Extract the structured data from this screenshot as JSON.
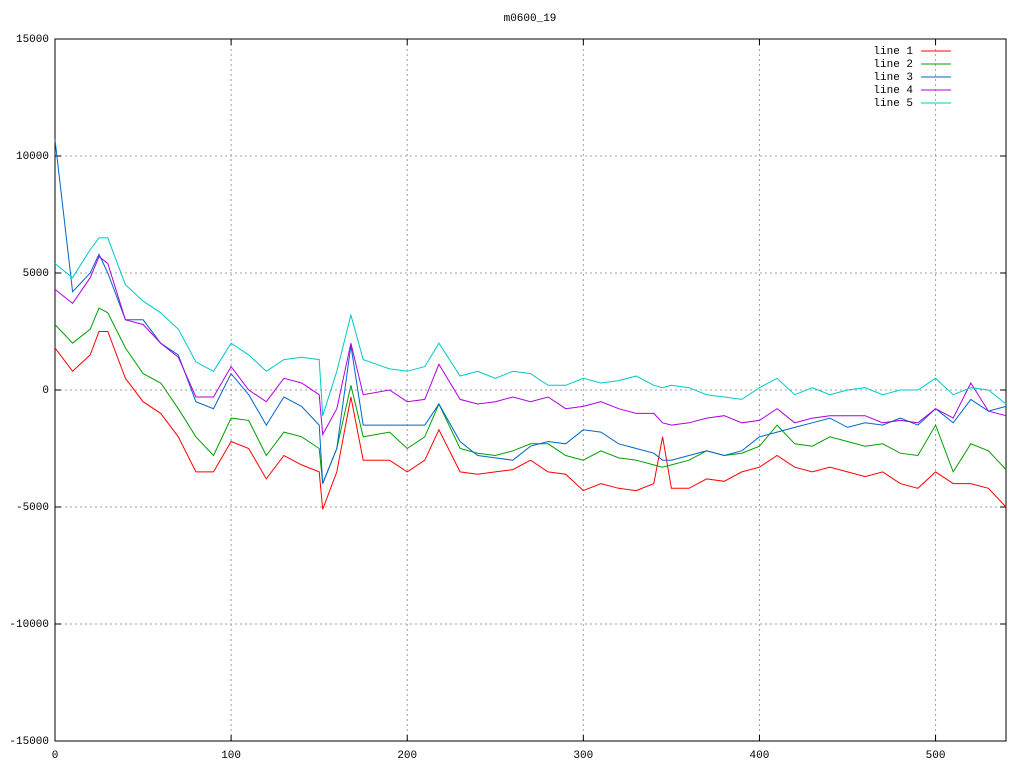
{
  "chart_data": {
    "type": "line",
    "title": "m0600_19",
    "x": [
      0,
      10,
      20,
      25,
      30,
      40,
      50,
      60,
      70,
      80,
      90,
      100,
      110,
      120,
      130,
      140,
      150,
      152,
      160,
      168,
      175,
      190,
      200,
      210,
      218,
      230,
      240,
      250,
      260,
      270,
      280,
      290,
      300,
      310,
      320,
      330,
      340,
      345,
      350,
      360,
      370,
      380,
      390,
      400,
      410,
      420,
      430,
      440,
      450,
      460,
      470,
      480,
      490,
      500,
      510,
      520,
      530,
      540
    ],
    "series": [
      {
        "name": "line 1",
        "color": "#ff0000",
        "values": [
          1800,
          800,
          1500,
          2500,
          2500,
          500,
          -500,
          -1000,
          -2000,
          -3500,
          -3500,
          -2200,
          -2500,
          -3800,
          -2800,
          -3200,
          -3500,
          -5100,
          -3500,
          -300,
          -3000,
          -3000,
          -3500,
          -3000,
          -1700,
          -3500,
          -3600,
          -3500,
          -3400,
          -3000,
          -3500,
          -3600,
          -4300,
          -4000,
          -4200,
          -4300,
          -4000,
          -2000,
          -4200,
          -4200,
          -3800,
          -3900,
          -3500,
          -3300,
          -2800,
          -3300,
          -3500,
          -3300,
          -3500,
          -3700,
          -3500,
          -4000,
          -4200,
          -3500,
          -4000,
          -4000,
          -4200,
          -5000
        ]
      },
      {
        "name": "line 2",
        "color": "#00a000",
        "values": [
          2800,
          2000,
          2600,
          3500,
          3300,
          1800,
          700,
          300,
          -800,
          -2000,
          -2800,
          -1200,
          -1300,
          -2800,
          -1800,
          -2000,
          -2500,
          -4000,
          -2500,
          200,
          -2000,
          -1800,
          -2500,
          -2000,
          -600,
          -2500,
          -2700,
          -2800,
          -2600,
          -2300,
          -2300,
          -2800,
          -3000,
          -2600,
          -2900,
          -3000,
          -3200,
          -3300,
          -3200,
          -3000,
          -2600,
          -2800,
          -2700,
          -2400,
          -1500,
          -2300,
          -2400,
          -2000,
          -2200,
          -2400,
          -2300,
          -2700,
          -2800,
          -1500,
          -3500,
          -2300,
          -2600,
          -3400
        ]
      },
      {
        "name": "line 3",
        "color": "#0066cc",
        "values": [
          10700,
          4200,
          5000,
          5800,
          5000,
          3000,
          3000,
          2000,
          1500,
          -500,
          -800,
          700,
          -200,
          -1500,
          -300,
          -700,
          -1500,
          -4000,
          -2500,
          1900,
          -1500,
          -1500,
          -1500,
          -1500,
          -600,
          -2200,
          -2800,
          -2900,
          -3000,
          -2400,
          -2200,
          -2300,
          -1700,
          -1800,
          -2300,
          -2500,
          -2700,
          -3000,
          -3000,
          -2800,
          -2600,
          -2800,
          -2600,
          -2000,
          -1800,
          -1600,
          -1400,
          -1200,
          -1600,
          -1400,
          -1500,
          -1200,
          -1500,
          -800,
          -1400,
          -400,
          -900,
          -700
        ]
      },
      {
        "name": "line 4",
        "color": "#b000e0",
        "values": [
          4300,
          3700,
          4800,
          5700,
          5400,
          3000,
          2800,
          2000,
          1400,
          -300,
          -300,
          1000,
          0,
          -500,
          500,
          300,
          -200,
          -1900,
          -800,
          2000,
          -200,
          0,
          -500,
          -400,
          1100,
          -400,
          -600,
          -500,
          -300,
          -500,
          -300,
          -800,
          -700,
          -500,
          -800,
          -1000,
          -1000,
          -1400,
          -1500,
          -1400,
          -1200,
          -1100,
          -1400,
          -1300,
          -800,
          -1400,
          -1200,
          -1100,
          -1100,
          -1100,
          -1400,
          -1300,
          -1400,
          -800,
          -1200,
          300,
          -900,
          -1100
        ]
      },
      {
        "name": "line 5",
        "color": "#00c8c8",
        "values": [
          5400,
          4800,
          6000,
          6500,
          6500,
          4500,
          3800,
          3300,
          2600,
          1200,
          800,
          2000,
          1500,
          800,
          1300,
          1400,
          1300,
          -1100,
          800,
          3200,
          1300,
          900,
          800,
          1000,
          2000,
          600,
          800,
          500,
          800,
          700,
          200,
          200,
          500,
          300,
          400,
          600,
          200,
          100,
          200,
          100,
          -200,
          -300,
          -400,
          100,
          500,
          -200,
          100,
          -200,
          0,
          100,
          -200,
          0,
          0,
          500,
          -200,
          100,
          0,
          -600
        ]
      }
    ],
    "xlim": [
      0,
      540
    ],
    "xticks": [
      0,
      100,
      200,
      300,
      400,
      500
    ],
    "ylim": [
      -15000,
      15000
    ],
    "yticks": [
      -15000,
      -10000,
      -5000,
      0,
      5000,
      10000,
      15000
    ],
    "grid": true,
    "legend": "top-right"
  }
}
